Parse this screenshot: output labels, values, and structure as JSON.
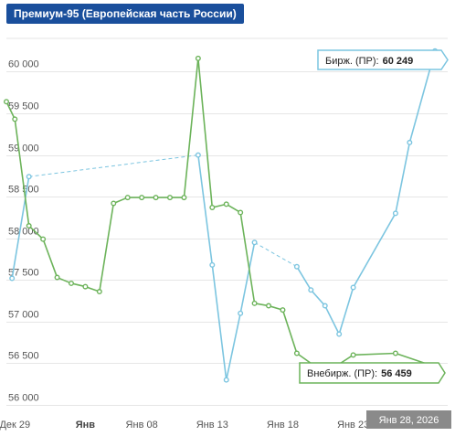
{
  "header": {
    "title": "Премиум-95 (Европейская часть России)"
  },
  "colors": {
    "exchange": "#7cc5e0",
    "otc": "#6cb35a",
    "title_bg": "#1a4f9c",
    "date_bg": "#8a8a8a"
  },
  "chart_data": {
    "type": "line",
    "title": "Премиум-95 (Европейская часть России)",
    "ylim": [
      56000,
      60400
    ],
    "yticks": [
      {
        "value": 56000,
        "label": "56 000"
      },
      {
        "value": 56500,
        "label": "56 500"
      },
      {
        "value": 57000,
        "label": "57 000"
      },
      {
        "value": 57500,
        "label": "57 500"
      },
      {
        "value": 58000,
        "label": "58 000"
      },
      {
        "value": 58500,
        "label": "58 500"
      },
      {
        "value": 59000,
        "label": "59 000"
      },
      {
        "value": 59500,
        "label": "59 500"
      },
      {
        "value": 60000,
        "label": "60 000"
      }
    ],
    "xlim": [
      -1.6,
      29.7
    ],
    "xticks": [
      {
        "value": -1,
        "label": "Дек 29",
        "bold": false
      },
      {
        "value": 4,
        "label": "Янв",
        "bold": true
      },
      {
        "value": 8,
        "label": "Янв 08",
        "bold": false
      },
      {
        "value": 13,
        "label": "Янв 13",
        "bold": false
      },
      {
        "value": 18,
        "label": "Янв 18",
        "bold": false
      },
      {
        "value": 23,
        "label": "Янв 23",
        "bold": false
      }
    ],
    "series": [
      {
        "name": "Бирж. (ПР)",
        "color": "#7cc5e0",
        "points": [
          [
            -1.2,
            57520
          ],
          [
            0.0,
            58740
          ],
          [
            12.0,
            59000
          ],
          [
            13.0,
            57680
          ],
          [
            14.0,
            56300
          ],
          [
            15.0,
            57100
          ],
          [
            16.0,
            57950
          ],
          [
            19.0,
            57660
          ],
          [
            20.0,
            57380
          ],
          [
            21.0,
            57190
          ],
          [
            22.0,
            56850
          ],
          [
            23.0,
            57410
          ],
          [
            26.0,
            58300
          ],
          [
            27.0,
            59150
          ],
          [
            28.8,
            60249
          ]
        ],
        "gaps": [
          1,
          6
        ]
      },
      {
        "name": "Внебирж. (ПР)",
        "color": "#6cb35a",
        "points": [
          [
            -1.6,
            59640
          ],
          [
            -1.0,
            59430
          ],
          [
            0.0,
            58150
          ],
          [
            1.0,
            57990
          ],
          [
            2.0,
            57530
          ],
          [
            3.0,
            57460
          ],
          [
            4.0,
            57420
          ],
          [
            5.0,
            57360
          ],
          [
            6.0,
            58420
          ],
          [
            7.0,
            58490
          ],
          [
            8.0,
            58490
          ],
          [
            9.0,
            58490
          ],
          [
            10.0,
            58490
          ],
          [
            11.0,
            58490
          ],
          [
            12.0,
            60160
          ],
          [
            13.0,
            58370
          ],
          [
            14.0,
            58410
          ],
          [
            15.0,
            58310
          ],
          [
            16.0,
            57220
          ],
          [
            17.0,
            57190
          ],
          [
            18.0,
            57140
          ],
          [
            19.0,
            56620
          ],
          [
            21.0,
            56380
          ],
          [
            23.0,
            56600
          ],
          [
            26.0,
            56620
          ],
          [
            28.8,
            56459
          ]
        ]
      }
    ],
    "tooltips": {
      "exchange": {
        "label": "Бирж. (ПР):",
        "value": "60 249"
      },
      "otc": {
        "label": "Внебирж. (ПР):",
        "value": "56 459"
      }
    },
    "crosshair_date": "Янв 28, 2026",
    "grid": true
  }
}
